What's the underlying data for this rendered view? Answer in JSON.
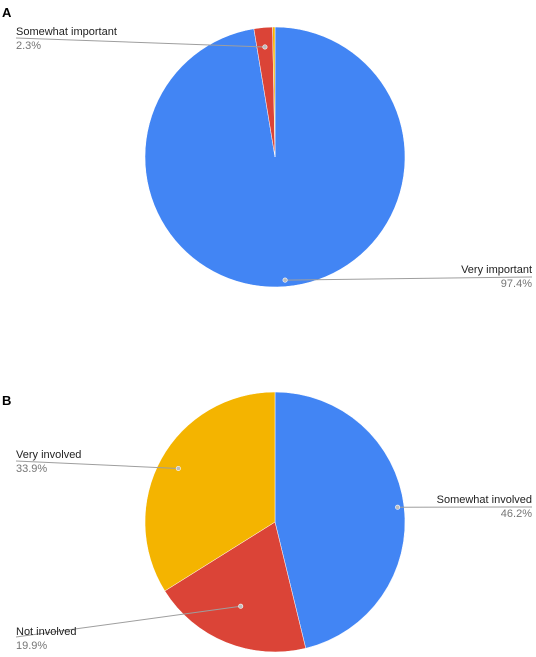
{
  "chart_data": [
    {
      "type": "pie",
      "panel": "A",
      "start_angle_deg": 0,
      "slices": [
        {
          "label": "Very important",
          "value": 97.4,
          "display": "97.4%",
          "color": "#4285f4"
        },
        {
          "label": "Somewhat important",
          "value": 2.3,
          "display": "2.3%",
          "color": "#db4437"
        },
        {
          "label": "",
          "value": 0.3,
          "display": "",
          "color": "#f4b400"
        }
      ]
    },
    {
      "type": "pie",
      "panel": "B",
      "start_angle_deg": 0,
      "slices": [
        {
          "label": "Somewhat involved",
          "value": 46.2,
          "display": "46.2%",
          "color": "#4285f4"
        },
        {
          "label": "Not involved",
          "value": 19.9,
          "display": "19.9%",
          "color": "#db4437"
        },
        {
          "label": "Very involved",
          "value": 33.9,
          "display": "33.9%",
          "color": "#f4b400"
        }
      ]
    }
  ]
}
